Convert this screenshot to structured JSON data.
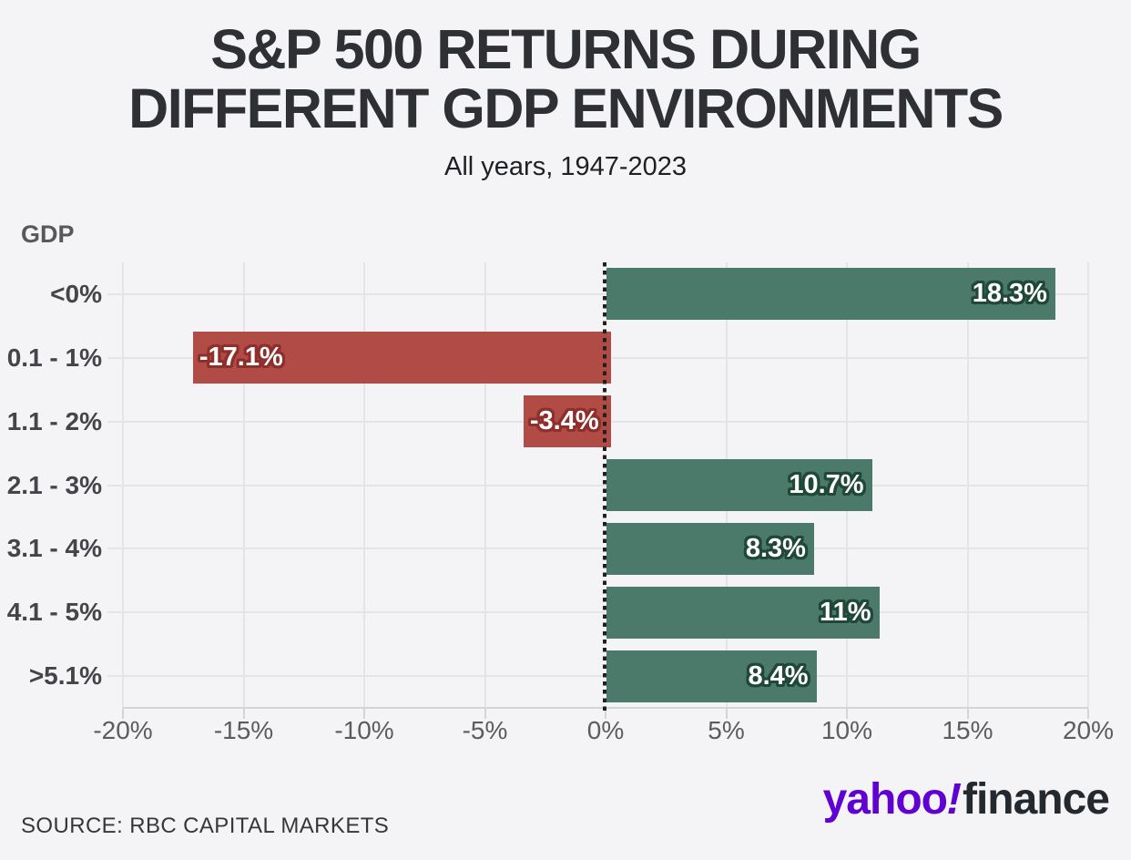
{
  "title": {
    "line1": "S&P 500 RETURNS DURING",
    "line2": "DIFFERENT GDP ENVIRONMENTS"
  },
  "subtitle": "All years, 1947-2023",
  "source": "SOURCE: RBC CAPITAL MARKETS",
  "logo": {
    "yahoo": "yahoo",
    "exclamation": "!",
    "finance": "finance",
    "yahoo_color": "#6001d2",
    "finance_color": "#24292f"
  },
  "chart_data": {
    "type": "bar",
    "orientation": "horizontal",
    "title": "S&P 500 RETURNS DURING DIFFERENT GDP ENVIRONMENTS",
    "subtitle": "All years, 1947-2023",
    "ylabel": "GDP",
    "categories": [
      "<0%",
      "0.1 - 1%",
      "1.1 - 2%",
      "2.1 - 3%",
      "3.1 - 4%",
      "4.1 - 5%",
      ">5.1%"
    ],
    "values": [
      18.3,
      -17.1,
      -3.4,
      10.7,
      8.3,
      11,
      8.4
    ],
    "bar_labels": [
      "18.3%",
      "-17.1%",
      "-3.4%",
      "10.7%",
      "8.3%",
      "11%",
      "8.4%"
    ],
    "x_tick_labels": [
      "-20%",
      "-15%",
      "-10%",
      "-5%",
      "0%",
      "5%",
      "10%",
      "15%",
      "20%"
    ],
    "x_tick_values": [
      -20,
      -15,
      -10,
      -5,
      0,
      5,
      10,
      15,
      20
    ],
    "xlim": [
      -20,
      20
    ],
    "grid": true,
    "zero_line_style": "dotted",
    "zero_line_color": "#202020",
    "positive_color": "#4c7a6a",
    "negative_color": "#b04b45",
    "positive_label_outline": "#1f4839",
    "negative_label_outline": "#8f2f2c",
    "gridline_color": "#e4e4e6",
    "axis_line_color": "#d4d4d6",
    "legend": "none"
  }
}
